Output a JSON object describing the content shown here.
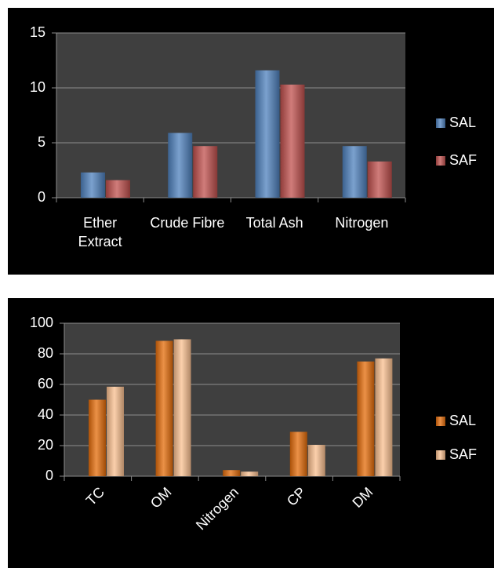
{
  "chart_data": [
    {
      "type": "bar",
      "categories": [
        "Ether Extract",
        "Crude Fibre",
        "Total Ash",
        "Nitrogen"
      ],
      "series": [
        {
          "name": "SAL",
          "color": "#4f81bd",
          "values": [
            2.3,
            5.9,
            11.6,
            4.7
          ]
        },
        {
          "name": "SAF",
          "color": "#c0504d",
          "values": [
            1.6,
            4.7,
            10.3,
            3.3
          ]
        }
      ],
      "ylim": [
        0,
        15
      ],
      "yticks": [
        0,
        5,
        10,
        15
      ],
      "grid": true,
      "legend": "right"
    },
    {
      "type": "bar",
      "categories": [
        "TC",
        "OM",
        "Nitrogen",
        "CP",
        "DM"
      ],
      "series": [
        {
          "name": "SAL",
          "color": "#e46c0a",
          "values": [
            50,
            88.5,
            4,
            29,
            75
          ]
        },
        {
          "name": "SAF",
          "color": "#fac090",
          "values": [
            58.5,
            89.5,
            3,
            20.5,
            77
          ]
        }
      ],
      "ylim": [
        0,
        100
      ],
      "yticks": [
        0,
        20,
        40,
        60,
        80,
        100
      ],
      "grid": true,
      "legend": "right"
    }
  ]
}
